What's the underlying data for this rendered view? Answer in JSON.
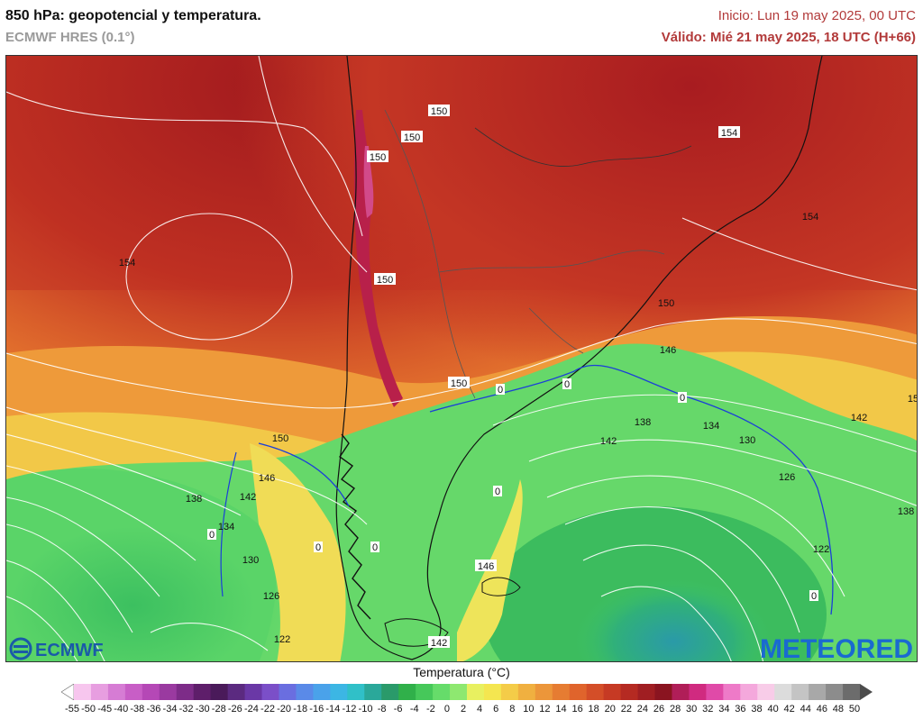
{
  "header": {
    "title": "850 hPa: geopotencial y temperatura.",
    "model": "ECMWF HRES (0.1°)",
    "init": "Inicio: Lun 19 may 2025, 00 UTC",
    "valid": "Válido: Mié 21 may 2025, 18 UTC (H+66)"
  },
  "logos": {
    "left": "ECMWF",
    "right": "METEORED"
  },
  "legend": {
    "title": "Temperatura (°C)",
    "ticks": [
      "-55",
      "-50",
      "-45",
      "-40",
      "-38",
      "-36",
      "-34",
      "-32",
      "-30",
      "-28",
      "-26",
      "-24",
      "-22",
      "-20",
      "-18",
      "-16",
      "-14",
      "-12",
      "-10",
      "-8",
      "-6",
      "-4",
      "-2",
      "0",
      "2",
      "4",
      "6",
      "8",
      "10",
      "12",
      "14",
      "16",
      "18",
      "20",
      "22",
      "24",
      "26",
      "28",
      "30",
      "32",
      "34",
      "36",
      "38",
      "40",
      "42",
      "44",
      "46",
      "48",
      "50"
    ],
    "colors": [
      "#ffffff",
      "#f7c6ee",
      "#e79ee0",
      "#d67cd4",
      "#c85ec6",
      "#b548b6",
      "#9a3aa0",
      "#7d2c88",
      "#5e1e6a",
      "#4a1a5a",
      "#5b2a80",
      "#6a38a6",
      "#7b4fc8",
      "#6a6ee0",
      "#5a8ae8",
      "#4aa2ea",
      "#3cb6e4",
      "#30c0c8",
      "#2aa89a",
      "#2a9a6a",
      "#30b04a",
      "#46c85a",
      "#66dc6a",
      "#8ee870",
      "#e8f060",
      "#f4e650",
      "#f4cc48",
      "#f0b040",
      "#ec963a",
      "#e67c32",
      "#e0642c",
      "#d44e28",
      "#c63a24",
      "#b52a22",
      "#a01e22",
      "#8a1420",
      "#b01e58",
      "#d02a80",
      "#e04aa8",
      "#ee7ac8",
      "#f4a8dc",
      "#f8cce8",
      "#dcdcdc",
      "#c4c4c4",
      "#a8a8a8",
      "#8c8c8c",
      "#6c6c6c",
      "#4c4c4c"
    ]
  },
  "contours": [
    {
      "label": "150"
    },
    {
      "label": "150"
    },
    {
      "label": "150"
    },
    {
      "label": "154"
    },
    {
      "label": "154"
    },
    {
      "label": "154"
    },
    {
      "label": "150"
    },
    {
      "label": "150"
    },
    {
      "label": "150"
    },
    {
      "label": "146"
    },
    {
      "label": "142"
    },
    {
      "label": "138"
    },
    {
      "label": "134"
    },
    {
      "label": "130"
    },
    {
      "label": "126"
    },
    {
      "label": "122"
    },
    {
      "label": "150"
    },
    {
      "label": "146"
    },
    {
      "label": "142"
    },
    {
      "label": "138"
    },
    {
      "label": "134"
    },
    {
      "label": "130"
    },
    {
      "label": "126"
    },
    {
      "label": "122"
    },
    {
      "label": "142"
    },
    {
      "label": "138"
    },
    {
      "label": "146"
    },
    {
      "label": "142"
    },
    {
      "label": "15"
    }
  ],
  "isotherm_zero": [
    "0",
    "0",
    "0",
    "0",
    "0",
    "0",
    "0",
    "0"
  ]
}
